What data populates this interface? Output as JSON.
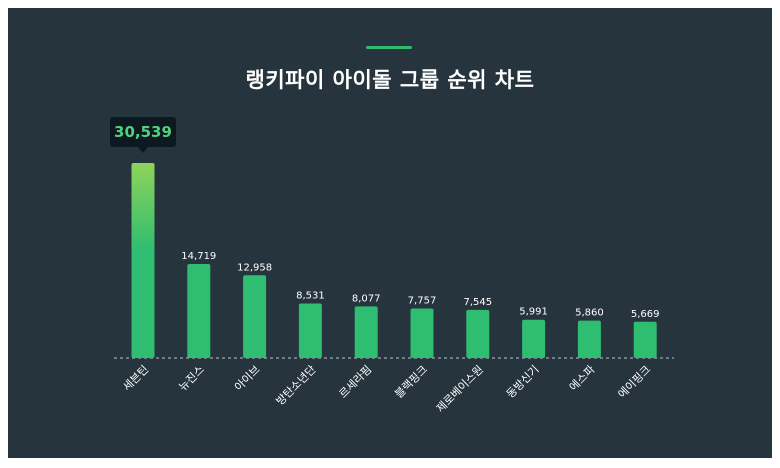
{
  "header": {
    "title": "랭키파이 아이돌 그룹 순위 차트"
  },
  "colors": {
    "background": "#25343d",
    "bar": "#2ebd71",
    "bar_top_highlight": "#8fd45a",
    "tooltip_bg": "#0d1820",
    "tooltip_text": "#4fd17f",
    "text": "#ffffff"
  },
  "chart_data": {
    "type": "bar",
    "title": "랭키파이 아이돌 그룹 순위 차트",
    "categories": [
      "세븐틴",
      "뉴진스",
      "아이브",
      "방탄소년단",
      "르세라핌",
      "블랙핑크",
      "제로베이스원",
      "동방신기",
      "에스파",
      "에이핑크"
    ],
    "values": [
      30539,
      14719,
      12958,
      8531,
      8077,
      7757,
      7545,
      5991,
      5860,
      5669
    ],
    "value_labels": [
      "30,539",
      "14,719",
      "12,958",
      "8,531",
      "8,077",
      "7,757",
      "7,545",
      "5,991",
      "5,860",
      "5,669"
    ],
    "highlight_index": 0,
    "ylim": [
      0,
      30539
    ],
    "grid": false,
    "legend": "none",
    "xlabel": "",
    "ylabel": ""
  }
}
